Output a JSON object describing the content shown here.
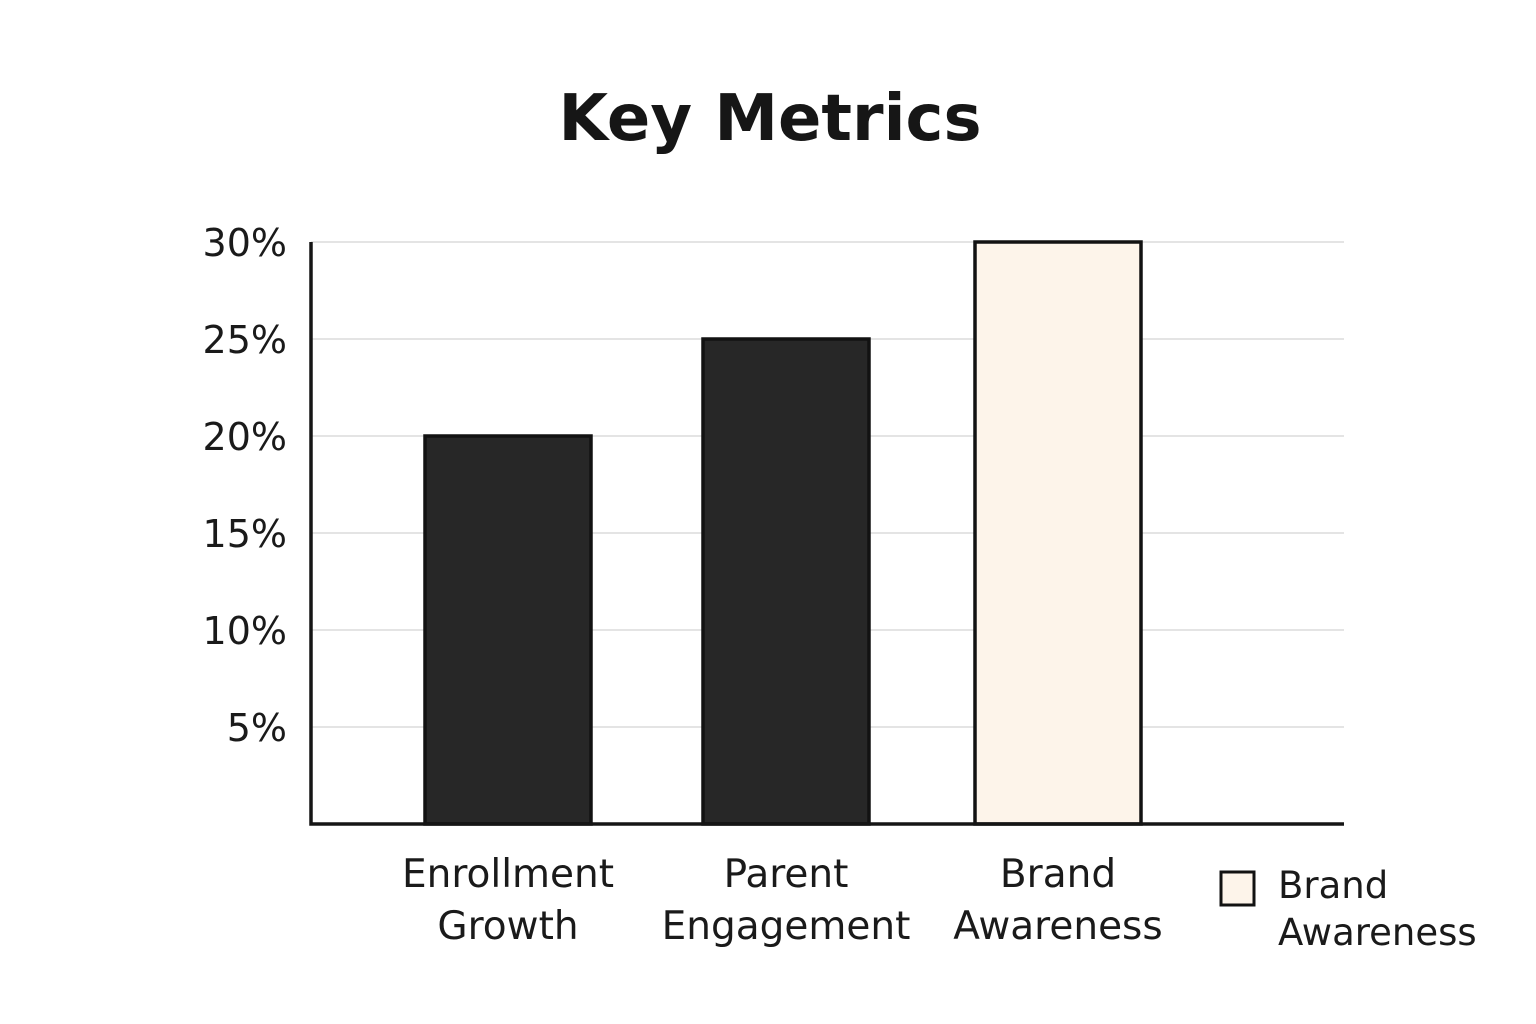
{
  "chart_data": {
    "type": "bar",
    "title": "Key Metrics",
    "xlabel": "",
    "ylabel": "",
    "categories": [
      {
        "lines": [
          "Enrollment",
          "Growth"
        ]
      },
      {
        "lines": [
          "Parent",
          "Engagement"
        ]
      },
      {
        "lines": [
          "Brand",
          "Awareness"
        ]
      }
    ],
    "values": [
      20,
      25,
      30
    ],
    "unit": "%",
    "ylim": [
      0,
      30
    ],
    "yticks": [
      {
        "value": 5,
        "label": "5%"
      },
      {
        "value": 10,
        "label": "10%"
      },
      {
        "value": 15,
        "label": "15%"
      },
      {
        "value": 20,
        "label": "20%"
      },
      {
        "value": 25,
        "label": "25%"
      },
      {
        "value": 30,
        "label": "30%"
      }
    ],
    "bar_colors": [
      "#272727",
      "#272727",
      "#fdf4ea"
    ],
    "grid": true,
    "legend": {
      "position": "bottom-right",
      "entries": [
        {
          "lines": [
            "Brand",
            "Awareness"
          ],
          "color": "#fdf4ea"
        }
      ]
    }
  }
}
